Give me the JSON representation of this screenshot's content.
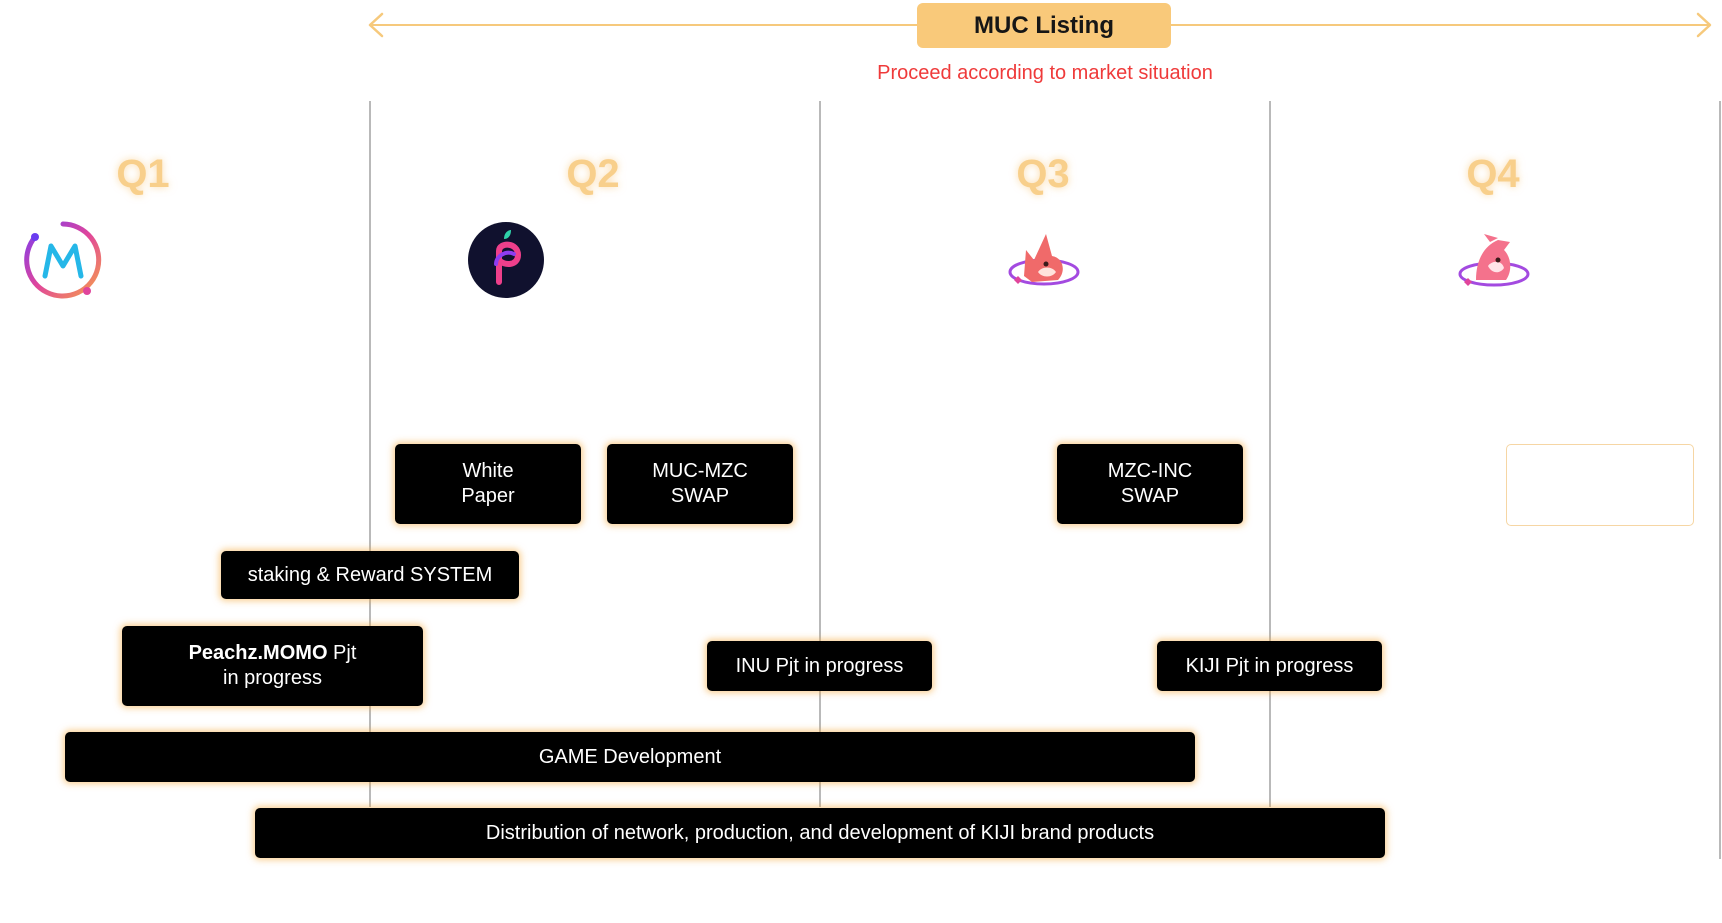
{
  "header": {
    "listing_label": "MUC Listing",
    "notice": "Proceed according to market situation",
    "arrow_color": "#f6c97c",
    "notice_color": "#ef3a3a"
  },
  "quarters": [
    {
      "label": "Q1",
      "logo": "muc-coin-logo"
    },
    {
      "label": "Q2",
      "logo": "peachz-logo"
    },
    {
      "label": "Q3",
      "logo": "inu-fox-logo"
    },
    {
      "label": "Q4",
      "logo": "kiji-logo"
    }
  ],
  "milestones": {
    "white_paper": {
      "line1": "White",
      "line2": "Paper"
    },
    "muc_mzc_swap": {
      "line1": "MUC-MZC",
      "line2": "SWAP"
    },
    "mzc_inc_swap": {
      "line1": "MZC-INC",
      "line2": "SWAP"
    },
    "q4_placeholder": ""
  },
  "tracks": {
    "staking": "staking & Reward SYSTEM",
    "peachz_bold": "Peachz.MOMO",
    "peachz_rest": " Pjt",
    "peachz_line2": "in progress",
    "inu": "INU Pjt in progress",
    "kiji": "KIJI Pjt in progress",
    "game": "GAME Development",
    "distribution": "Distribution of network, production, and development of KIJI brand products"
  },
  "colors": {
    "quarter_label": "#f8cf8b",
    "listing_bg": "#f9c97a",
    "box_bg": "#000000",
    "box_glow": "#f5aa3c",
    "divider": "#b9b9b9"
  }
}
